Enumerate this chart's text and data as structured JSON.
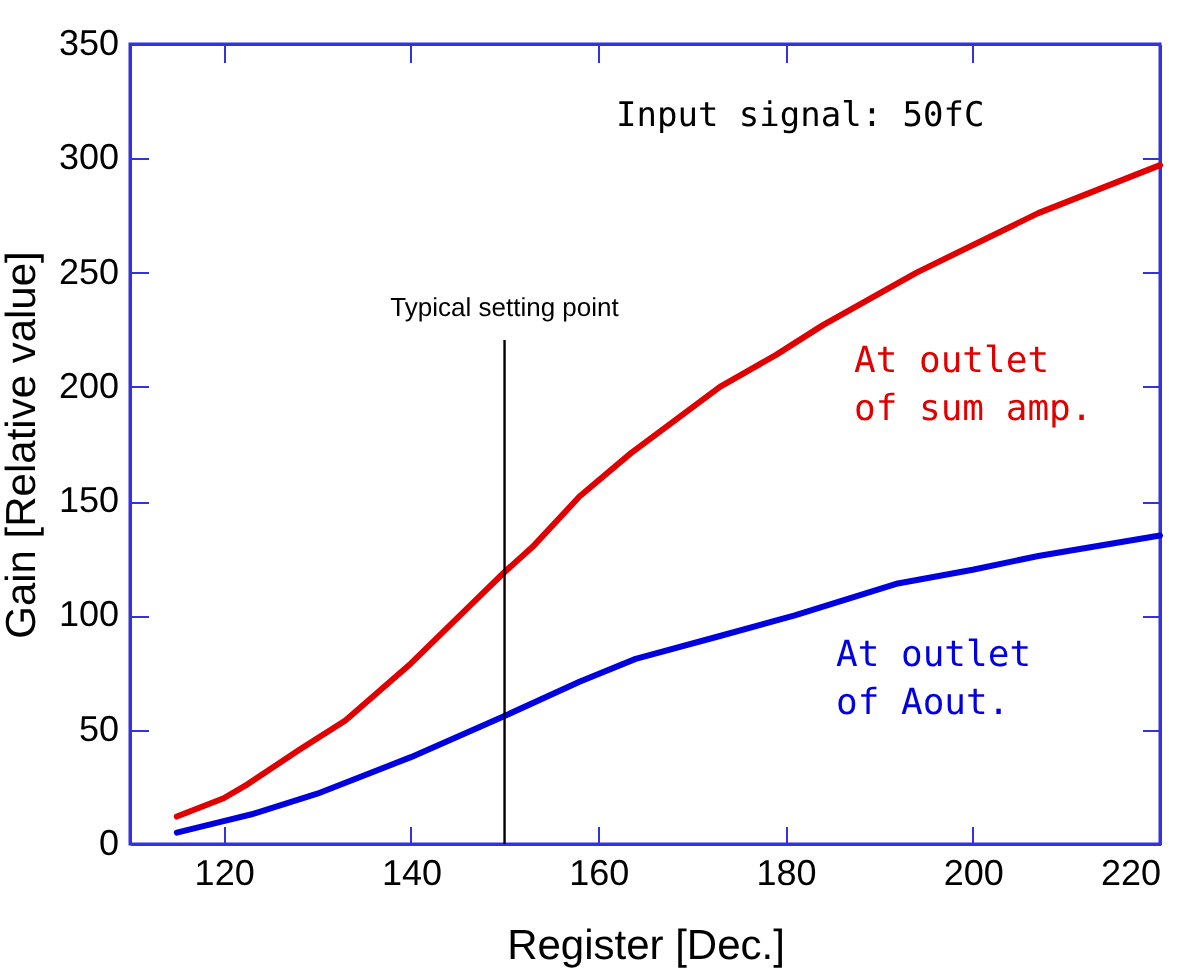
{
  "chart_data": {
    "type": "line",
    "xlabel": "Register [Dec.]",
    "ylabel": "Gain [Relative value]",
    "annotations": [
      "Input signal: 50fC"
    ],
    "xlim": [
      110,
      220
    ],
    "xticks": [
      120,
      140,
      160,
      180,
      200,
      220
    ],
    "ylim": [
      0,
      350
    ],
    "yticks": [
      0,
      50,
      100,
      150,
      200,
      250,
      300,
      350
    ],
    "grid": false,
    "line_style": "solid",
    "series": [
      {
        "name": "At outlet\nof sum amp.",
        "color": "#e00000",
        "x": [
          115,
          120,
          122.5,
          128,
          133,
          140,
          145,
          150,
          153,
          158,
          163.5,
          173,
          179,
          184,
          194,
          207,
          220
        ],
        "values": [
          12,
          20,
          26,
          41,
          54,
          79,
          99,
          119,
          130,
          152,
          171,
          200,
          214,
          227,
          250,
          276,
          297
        ]
      },
      {
        "name": "At outlet\nof Aout.",
        "color": "#0000e0",
        "x": [
          115,
          120,
          123,
          130,
          140,
          150,
          158,
          164,
          173,
          181,
          192,
          200,
          207,
          220
        ],
        "values": [
          5,
          10,
          13,
          22,
          38,
          56,
          71,
          81,
          91,
          100,
          114,
          120,
          126,
          135
        ]
      }
    ],
    "ref_lines": [
      {
        "axis": "x",
        "value": 150,
        "label": "Typical setting point",
        "color": "#000000"
      }
    ]
  }
}
